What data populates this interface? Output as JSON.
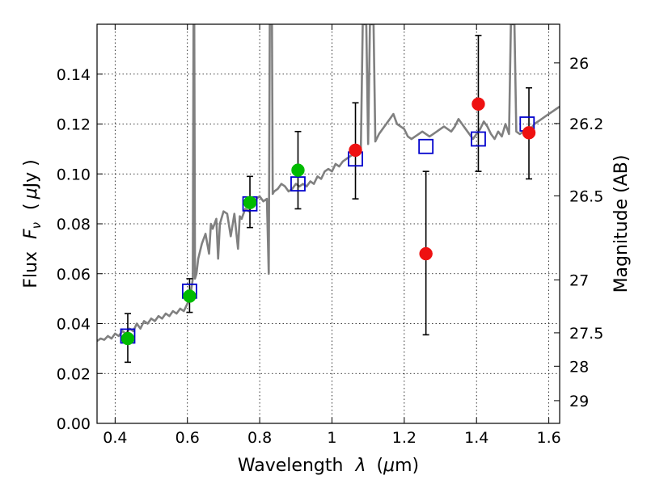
{
  "chart_data": {
    "type": "scatter",
    "xlabel_main": "Wavelength",
    "xlabel_sym": "λ",
    "xlabel_unit_open": "(",
    "xlabel_unit_mu": "μ",
    "xlabel_unit_rest": "m)",
    "ylabel_main": "Flux",
    "ylabel_sym": "F",
    "ylabel_sub": "ν",
    "ylabel_unit_open": "(",
    "ylabel_unit_mu": "μ",
    "ylabel_unit_rest": "Jy )",
    "y2label": "Magnitude (AB)",
    "xlim": [
      0.35,
      1.63
    ],
    "ylim": [
      0.0,
      0.16
    ],
    "grid": true,
    "x_ticks": [
      0.4,
      0.6,
      0.8,
      1.0,
      1.2,
      1.4,
      1.6
    ],
    "x_tick_labels": [
      "0.4",
      "0.6",
      "0.8",
      "1",
      "1.2",
      "1.4",
      "1.6"
    ],
    "y_ticks": [
      0.0,
      0.02,
      0.04,
      0.06,
      0.08,
      0.1,
      0.12,
      0.14
    ],
    "y_tick_labels": [
      "0.00",
      "0.02",
      "0.04",
      "0.06",
      "0.08",
      "0.10",
      "0.12",
      "0.14"
    ],
    "y2_ticks": [
      {
        "label": "26",
        "flux": 0.1445
      },
      {
        "label": "26.2",
        "flux": 0.1202
      },
      {
        "label": "26.5",
        "flux": 0.0912
      },
      {
        "label": "27",
        "flux": 0.0575
      },
      {
        "label": "27.5",
        "flux": 0.0363
      },
      {
        "label": "28",
        "flux": 0.0229
      },
      {
        "label": "29",
        "flux": 0.0091
      }
    ],
    "model_spectrum": {
      "color": "#808080",
      "points": [
        [
          0.35,
          0.033
        ],
        [
          0.36,
          0.034
        ],
        [
          0.37,
          0.0335
        ],
        [
          0.38,
          0.035
        ],
        [
          0.39,
          0.034
        ],
        [
          0.4,
          0.036
        ],
        [
          0.41,
          0.035
        ],
        [
          0.42,
          0.037
        ],
        [
          0.43,
          0.036
        ],
        [
          0.44,
          0.038
        ],
        [
          0.45,
          0.037
        ],
        [
          0.46,
          0.04
        ],
        [
          0.47,
          0.038
        ],
        [
          0.48,
          0.041
        ],
        [
          0.49,
          0.04
        ],
        [
          0.5,
          0.042
        ],
        [
          0.51,
          0.041
        ],
        [
          0.52,
          0.043
        ],
        [
          0.53,
          0.042
        ],
        [
          0.54,
          0.044
        ],
        [
          0.55,
          0.043
        ],
        [
          0.56,
          0.045
        ],
        [
          0.57,
          0.044
        ],
        [
          0.58,
          0.046
        ],
        [
          0.59,
          0.045
        ],
        [
          0.6,
          0.048
        ],
        [
          0.605,
          0.05
        ],
        [
          0.61,
          0.053
        ],
        [
          0.615,
          0.058
        ],
        [
          0.617,
          0.16
        ],
        [
          0.619,
          0.16
        ],
        [
          0.621,
          0.058
        ],
        [
          0.625,
          0.06
        ],
        [
          0.63,
          0.066
        ],
        [
          0.64,
          0.072
        ],
        [
          0.65,
          0.076
        ],
        [
          0.66,
          0.068
        ],
        [
          0.665,
          0.08
        ],
        [
          0.67,
          0.078
        ],
        [
          0.68,
          0.082
        ],
        [
          0.685,
          0.066
        ],
        [
          0.69,
          0.08
        ],
        [
          0.7,
          0.085
        ],
        [
          0.71,
          0.084
        ],
        [
          0.72,
          0.075
        ],
        [
          0.73,
          0.084
        ],
        [
          0.74,
          0.07
        ],
        [
          0.745,
          0.083
        ],
        [
          0.75,
          0.082
        ],
        [
          0.76,
          0.086
        ],
        [
          0.77,
          0.085
        ],
        [
          0.78,
          0.088
        ],
        [
          0.79,
          0.09
        ],
        [
          0.8,
          0.091
        ],
        [
          0.81,
          0.089
        ],
        [
          0.82,
          0.09
        ],
        [
          0.825,
          0.06
        ],
        [
          0.828,
          0.16
        ],
        [
          0.834,
          0.16
        ],
        [
          0.836,
          0.092
        ],
        [
          0.84,
          0.093
        ],
        [
          0.85,
          0.094
        ],
        [
          0.86,
          0.096
        ],
        [
          0.87,
          0.095
        ],
        [
          0.88,
          0.093
        ],
        [
          0.89,
          0.094
        ],
        [
          0.9,
          0.096
        ],
        [
          0.91,
          0.095
        ],
        [
          0.92,
          0.096
        ],
        [
          0.93,
          0.095
        ],
        [
          0.94,
          0.097
        ],
        [
          0.95,
          0.096
        ],
        [
          0.96,
          0.099
        ],
        [
          0.97,
          0.098
        ],
        [
          0.98,
          0.101
        ],
        [
          0.99,
          0.102
        ],
        [
          1.0,
          0.101
        ],
        [
          1.01,
          0.104
        ],
        [
          1.02,
          0.103
        ],
        [
          1.03,
          0.105
        ],
        [
          1.04,
          0.106
        ],
        [
          1.05,
          0.107
        ],
        [
          1.06,
          0.108
        ],
        [
          1.07,
          0.109
        ],
        [
          1.08,
          0.11
        ],
        [
          1.085,
          0.16
        ],
        [
          1.095,
          0.16
        ],
        [
          1.1,
          0.112
        ],
        [
          1.105,
          0.16
        ],
        [
          1.115,
          0.16
        ],
        [
          1.12,
          0.113
        ],
        [
          1.13,
          0.116
        ],
        [
          1.14,
          0.118
        ],
        [
          1.15,
          0.12
        ],
        [
          1.16,
          0.122
        ],
        [
          1.17,
          0.124
        ],
        [
          1.18,
          0.12
        ],
        [
          1.19,
          0.119
        ],
        [
          1.2,
          0.118
        ],
        [
          1.21,
          0.115
        ],
        [
          1.22,
          0.114
        ],
        [
          1.23,
          0.115
        ],
        [
          1.24,
          0.116
        ],
        [
          1.25,
          0.117
        ],
        [
          1.26,
          0.116
        ],
        [
          1.27,
          0.115
        ],
        [
          1.28,
          0.116
        ],
        [
          1.29,
          0.117
        ],
        [
          1.3,
          0.118
        ],
        [
          1.31,
          0.119
        ],
        [
          1.32,
          0.118
        ],
        [
          1.33,
          0.117
        ],
        [
          1.34,
          0.119
        ],
        [
          1.35,
          0.122
        ],
        [
          1.36,
          0.12
        ],
        [
          1.37,
          0.118
        ],
        [
          1.38,
          0.116
        ],
        [
          1.39,
          0.114
        ],
        [
          1.4,
          0.116
        ],
        [
          1.41,
          0.118
        ],
        [
          1.42,
          0.121
        ],
        [
          1.43,
          0.119
        ],
        [
          1.44,
          0.116
        ],
        [
          1.45,
          0.114
        ],
        [
          1.46,
          0.117
        ],
        [
          1.47,
          0.115
        ],
        [
          1.48,
          0.12
        ],
        [
          1.49,
          0.116
        ],
        [
          1.495,
          0.16
        ],
        [
          1.505,
          0.16
        ],
        [
          1.51,
          0.117
        ],
        [
          1.52,
          0.116
        ],
        [
          1.53,
          0.117
        ],
        [
          1.54,
          0.116
        ],
        [
          1.55,
          0.118
        ],
        [
          1.56,
          0.12
        ],
        [
          1.57,
          0.121
        ],
        [
          1.58,
          0.122
        ],
        [
          1.59,
          0.123
        ],
        [
          1.6,
          0.124
        ],
        [
          1.61,
          0.125
        ],
        [
          1.62,
          0.126
        ],
        [
          1.63,
          0.127
        ]
      ]
    },
    "series": [
      {
        "marker": "square",
        "color": "#0000cc",
        "points": [
          {
            "x": 0.435,
            "y": 0.035
          },
          {
            "x": 0.606,
            "y": 0.053
          },
          {
            "x": 0.773,
            "y": 0.088
          },
          {
            "x": 0.906,
            "y": 0.096
          },
          {
            "x": 1.065,
            "y": 0.106
          },
          {
            "x": 1.26,
            "y": 0.111
          },
          {
            "x": 1.405,
            "y": 0.114
          },
          {
            "x": 1.54,
            "y": 0.12
          }
        ]
      },
      {
        "marker": "circle",
        "color": "#00bb00",
        "points": [
          {
            "x": 0.435,
            "y": 0.034,
            "yerr_low": 0.0245,
            "yerr_high": 0.044
          },
          {
            "x": 0.606,
            "y": 0.051,
            "yerr_low": 0.0445,
            "yerr_high": 0.058
          },
          {
            "x": 0.773,
            "y": 0.0885,
            "yerr_low": 0.0785,
            "yerr_high": 0.099
          },
          {
            "x": 0.906,
            "y": 0.1015,
            "yerr_low": 0.086,
            "yerr_high": 0.117
          }
        ]
      },
      {
        "marker": "circle",
        "color": "#ee1111",
        "points": [
          {
            "x": 1.065,
            "y": 0.1095,
            "yerr_low": 0.09,
            "yerr_high": 0.1285
          },
          {
            "x": 1.26,
            "y": 0.068,
            "yerr_low": 0.0355,
            "yerr_high": 0.101
          },
          {
            "x": 1.405,
            "y": 0.128,
            "yerr_low": 0.101,
            "yerr_high": 0.1555
          },
          {
            "x": 1.545,
            "y": 0.1165,
            "yerr_low": 0.098,
            "yerr_high": 0.1345
          }
        ]
      }
    ]
  }
}
